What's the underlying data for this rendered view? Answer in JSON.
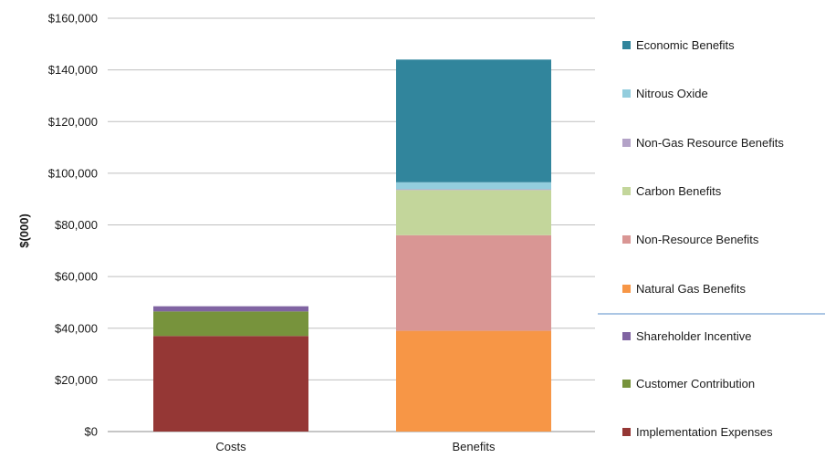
{
  "chart_data": {
    "type": "bar",
    "stacked": true,
    "categories": [
      "Costs",
      "Benefits"
    ],
    "ylabel": "$(000)",
    "ylim": [
      0,
      160000
    ],
    "yticks": [
      0,
      20000,
      40000,
      60000,
      80000,
      100000,
      120000,
      140000,
      160000
    ],
    "ytick_labels": [
      "$0",
      "$20,000",
      "$40,000",
      "$60,000",
      "$80,000",
      "$100,000",
      "$120,000",
      "$140,000",
      "$160,000"
    ],
    "grid": true,
    "legend_position": "right",
    "series": [
      {
        "name": "Implementation Expenses",
        "color": "#953735",
        "values": [
          37000,
          0
        ]
      },
      {
        "name": "Customer Contribution",
        "color": "#77933c",
        "values": [
          9500,
          0
        ]
      },
      {
        "name": "Shareholder Incentive",
        "color": "#8064a2",
        "values": [
          2000,
          0
        ]
      },
      {
        "name": "Natural Gas Benefits",
        "color": "#f79646",
        "values": [
          0,
          39000
        ]
      },
      {
        "name": "Non-Resource Benefits",
        "color": "#d99694",
        "values": [
          0,
          37000
        ]
      },
      {
        "name": "Carbon Benefits",
        "color": "#c3d69b",
        "values": [
          0,
          17500
        ]
      },
      {
        "name": "Non-Gas Resource Benefits",
        "color": "#b3a2c7",
        "values": [
          0,
          300
        ]
      },
      {
        "name": "Nitrous Oxide",
        "color": "#93cddd",
        "values": [
          0,
          2700
        ]
      },
      {
        "name": "Economic Benefits",
        "color": "#31859c",
        "values": [
          0,
          47500
        ]
      }
    ],
    "legend_order": [
      "Economic Benefits",
      "Nitrous Oxide",
      "Non-Gas Resource Benefits",
      "Carbon Benefits",
      "Non-Resource Benefits",
      "Natural Gas Benefits",
      "Shareholder Incentive",
      "Customer Contribution",
      "Implementation Expenses"
    ]
  }
}
